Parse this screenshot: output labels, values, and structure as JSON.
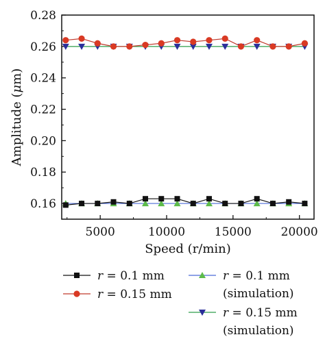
{
  "chart_data": {
    "type": "line",
    "xlabel": "Speed (r/min)",
    "ylabel": "Amplitude (μm)",
    "ylabel_parts": {
      "text": "Amplitude (",
      "symbol": "μ",
      "unit": "m)"
    },
    "xlim": [
      2100,
      21100
    ],
    "ylim": [
      0.15,
      0.28
    ],
    "xticks": [
      5000,
      10000,
      15000,
      20000
    ],
    "yticks": [
      0.16,
      0.18,
      0.2,
      0.22,
      0.24,
      0.26,
      0.28
    ],
    "xtick_labels": [
      "5000",
      "10000",
      "15000",
      "20000"
    ],
    "ytick_labels": [
      "0.16",
      "0.18",
      "0.20",
      "0.22",
      "0.24",
      "0.26",
      "0.28"
    ],
    "grid": false,
    "x": [
      2400,
      3600,
      4800,
      6000,
      7200,
      8400,
      9600,
      10800,
      12000,
      13200,
      14400,
      15600,
      16800,
      18000,
      19200,
      20400
    ],
    "series": [
      {
        "legend_parts": {
          "var": "r",
          "value": "= 0.1 mm",
          "note": ""
        },
        "marker": "square",
        "color": "#111111",
        "marker_fill": "#111111",
        "values": [
          0.159,
          0.16,
          0.16,
          0.161,
          0.16,
          0.163,
          0.163,
          0.163,
          0.16,
          0.163,
          0.16,
          0.16,
          0.163,
          0.16,
          0.161,
          0.16
        ]
      },
      {
        "legend_parts": {
          "var": "r",
          "value": "= 0.15 mm",
          "note": ""
        },
        "marker": "circle",
        "color": "#c0392b",
        "marker_fill": "#d93a24",
        "values": [
          0.264,
          0.265,
          0.262,
          0.26,
          0.26,
          0.261,
          0.262,
          0.264,
          0.263,
          0.264,
          0.265,
          0.26,
          0.264,
          0.26,
          0.26,
          0.262
        ]
      },
      {
        "legend_parts": {
          "var": "r",
          "value": "= 0.1 mm",
          "note": "(simulation)"
        },
        "marker": "triangle-up",
        "color": "#4b6bd6",
        "marker_fill": "#5dbb4a",
        "values": [
          0.16,
          0.16,
          0.16,
          0.16,
          0.16,
          0.16,
          0.16,
          0.16,
          0.16,
          0.16,
          0.16,
          0.16,
          0.16,
          0.16,
          0.16,
          0.16
        ]
      },
      {
        "legend_parts": {
          "var": "r",
          "value": "= 0.15 mm",
          "note": "(simulation)"
        },
        "marker": "triangle-down",
        "color": "#2e9e4a",
        "marker_fill": "#2b2f9a",
        "values": [
          0.26,
          0.26,
          0.26,
          0.26,
          0.26,
          0.26,
          0.26,
          0.26,
          0.26,
          0.26,
          0.26,
          0.26,
          0.26,
          0.26,
          0.26,
          0.26
        ]
      }
    ],
    "legend_placement": "bottom",
    "legend_columns": 2
  }
}
